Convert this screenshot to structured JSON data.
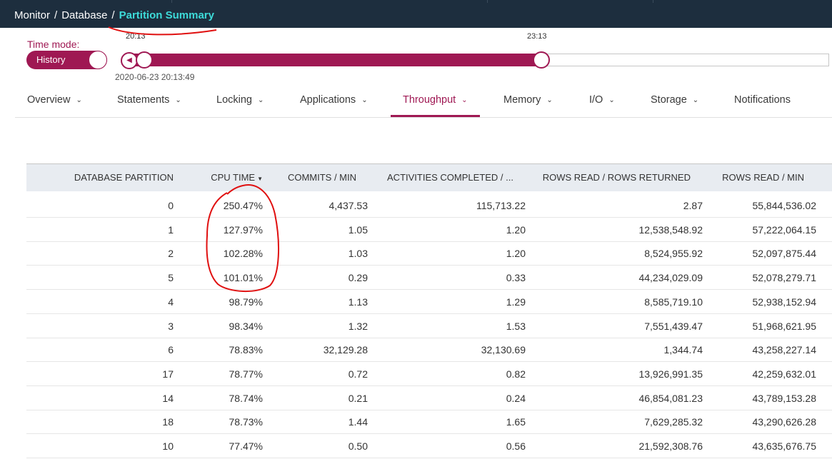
{
  "breadcrumb": {
    "items": [
      "Monitor",
      "Database"
    ],
    "current": "Partition Summary"
  },
  "time_mode": {
    "label": "Time mode:",
    "toggle_label": "History"
  },
  "slider": {
    "start_label": "20:13",
    "end_label": "23:13",
    "timestamp": "2020-06-23 20:13:49",
    "fill_fraction": 0.59
  },
  "tabs": [
    {
      "label": "Overview",
      "dropdown": true
    },
    {
      "label": "Statements",
      "dropdown": true
    },
    {
      "label": "Locking",
      "dropdown": true
    },
    {
      "label": "Applications",
      "dropdown": true
    },
    {
      "label": "Throughput",
      "dropdown": true,
      "active": true
    },
    {
      "label": "Memory",
      "dropdown": true
    },
    {
      "label": "I/O",
      "dropdown": true
    },
    {
      "label": "Storage",
      "dropdown": true
    },
    {
      "label": "Notifications",
      "dropdown": false
    }
  ],
  "table": {
    "columns": [
      "DATABASE PARTITION",
      "CPU TIME",
      "COMMITS / MIN",
      "ACTIVITIES COMPLETED / ...",
      "ROWS READ / ROWS RETURNED",
      "ROWS READ / MIN"
    ],
    "sorted_column": "CPU TIME",
    "rows": [
      [
        "0",
        "250.47%",
        "4,437.53",
        "115,713.22",
        "2.87",
        "55,844,536.02"
      ],
      [
        "1",
        "127.97%",
        "1.05",
        "1.20",
        "12,538,548.92",
        "57,222,064.15"
      ],
      [
        "2",
        "102.28%",
        "1.03",
        "1.20",
        "8,524,955.92",
        "52,097,875.44"
      ],
      [
        "5",
        "101.01%",
        "0.29",
        "0.33",
        "44,234,029.09",
        "52,078,279.71"
      ],
      [
        "4",
        "98.79%",
        "1.13",
        "1.29",
        "8,585,719.10",
        "52,938,152.94"
      ],
      [
        "3",
        "98.34%",
        "1.32",
        "1.53",
        "7,551,439.47",
        "51,968,621.95"
      ],
      [
        "6",
        "78.83%",
        "32,129.28",
        "32,130.69",
        "1,344.74",
        "43,258,227.14"
      ],
      [
        "17",
        "78.77%",
        "0.72",
        "0.82",
        "13,926,991.35",
        "42,259,632.01"
      ],
      [
        "14",
        "78.74%",
        "0.21",
        "0.24",
        "46,854,081.23",
        "43,789,153.28"
      ],
      [
        "18",
        "78.73%",
        "1.44",
        "1.65",
        "7,629,285.32",
        "43,290,626.28"
      ],
      [
        "10",
        "77.47%",
        "0.50",
        "0.56",
        "21,592,308.76",
        "43,635,676.75"
      ]
    ]
  },
  "colors": {
    "accent": "#9f1853",
    "header_bg": "#1d2e3e",
    "breadcrumb_current": "#3ddbd9",
    "annotation": "#e01010"
  }
}
